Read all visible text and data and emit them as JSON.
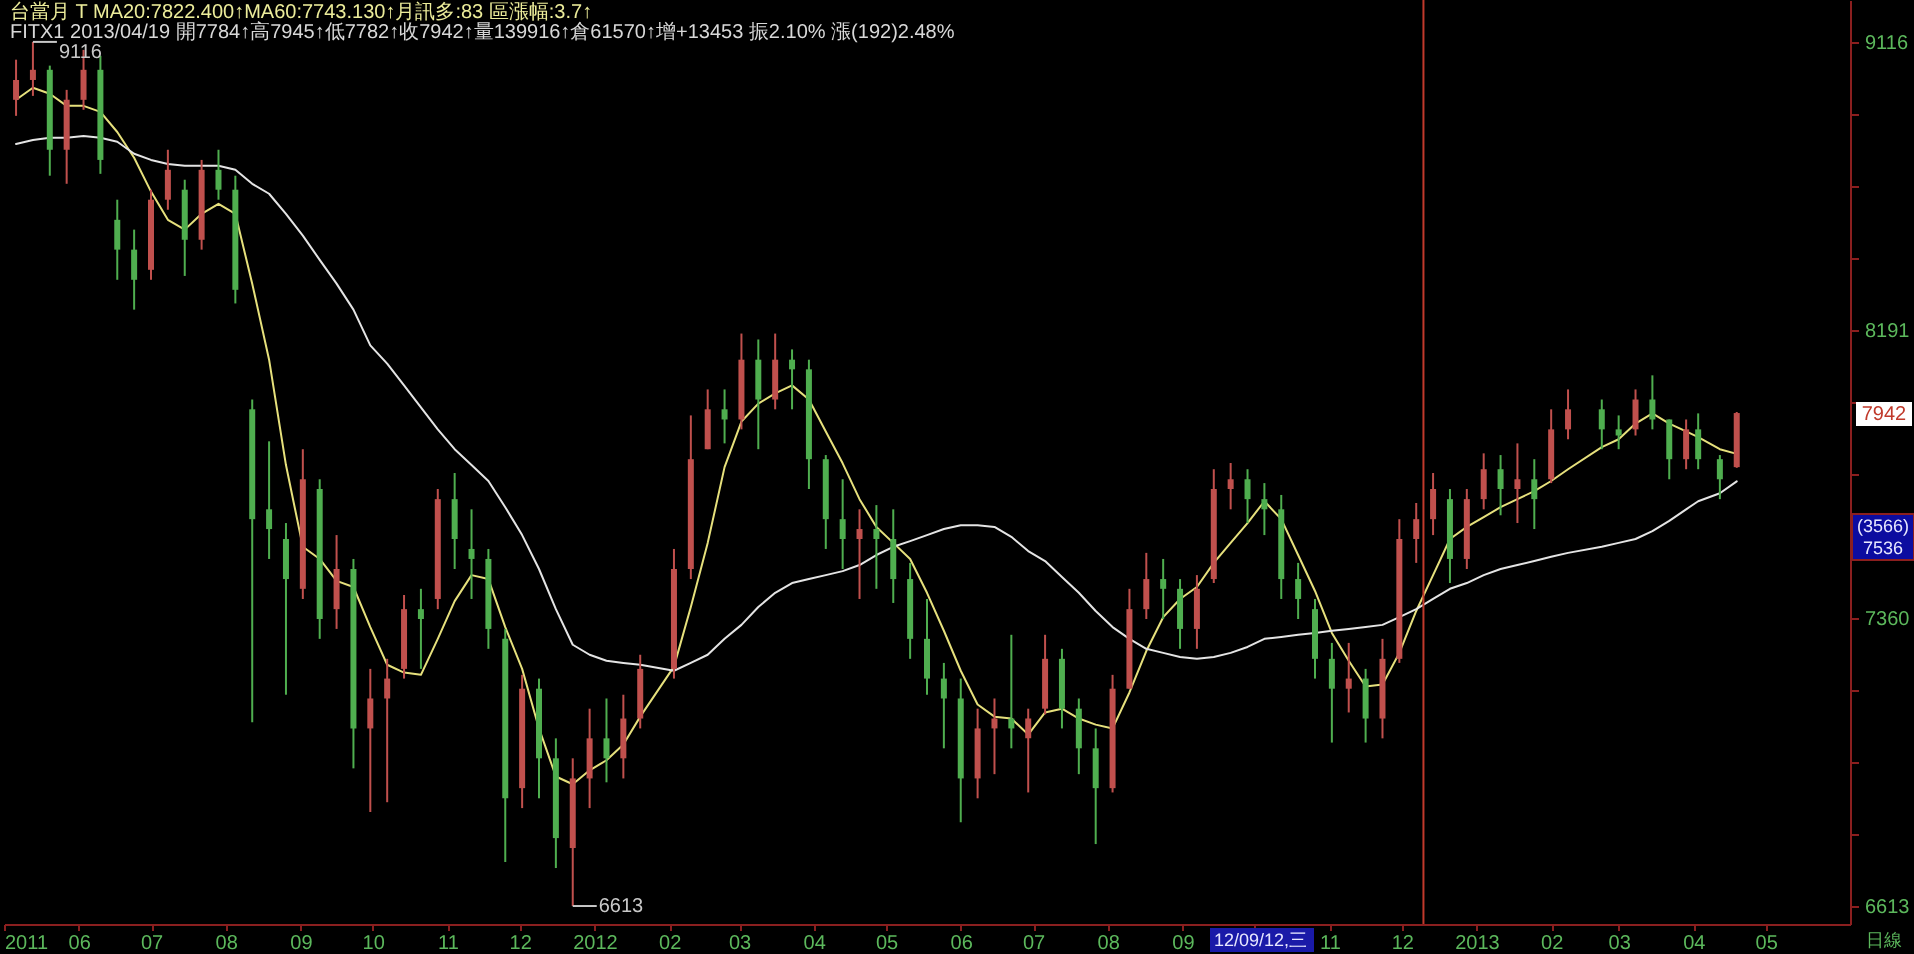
{
  "chart_data": {
    "type": "candlestick",
    "title": "台當月 T MA20:7822.400↑MA60:7743.130↑月訊多:83 區漲幅:3.7↑",
    "subtitle": "FITX1 2013/04/19 開7784↑高7945↑低7782↑收7942↑量139916↑倉61570↑增+13453 振2.10% 漲(192)2.48%",
    "x": [
      "2011-05-06",
      "2011-05-13",
      "2011-05-20",
      "2011-05-27",
      "2011-06-03",
      "2011-06-10",
      "2011-06-17",
      "2011-06-24",
      "2011-07-01",
      "2011-07-08",
      "2011-07-15",
      "2011-07-22",
      "2011-07-29",
      "2011-08-05",
      "2011-08-12",
      "2011-08-19",
      "2011-08-26",
      "2011-09-02",
      "2011-09-09",
      "2011-09-16",
      "2011-09-23",
      "2011-09-30",
      "2011-10-07",
      "2011-10-14",
      "2011-10-21",
      "2011-10-28",
      "2011-11-04",
      "2011-11-11",
      "2011-11-18",
      "2011-11-25",
      "2011-12-02",
      "2011-12-09",
      "2011-12-16",
      "2011-12-23",
      "2011-12-30",
      "2012-01-06",
      "2012-01-13",
      "2012-01-20",
      "2012-02-03",
      "2012-02-10",
      "2012-02-17",
      "2012-02-24",
      "2012-03-02",
      "2012-03-09",
      "2012-03-16",
      "2012-03-23",
      "2012-03-30",
      "2012-04-06",
      "2012-04-13",
      "2012-04-20",
      "2012-04-27",
      "2012-05-04",
      "2012-05-11",
      "2012-05-18",
      "2012-05-25",
      "2012-06-01",
      "2012-06-08",
      "2012-06-15",
      "2012-06-22",
      "2012-06-29",
      "2012-07-06",
      "2012-07-13",
      "2012-07-20",
      "2012-07-27",
      "2012-08-03",
      "2012-08-10",
      "2012-08-17",
      "2012-08-24",
      "2012-08-31",
      "2012-09-07",
      "2012-09-14",
      "2012-09-21",
      "2012-09-28",
      "2012-10-05",
      "2012-10-12",
      "2012-10-19",
      "2012-10-26",
      "2012-11-02",
      "2012-11-09",
      "2012-11-16",
      "2012-11-23",
      "2012-11-30",
      "2012-12-07",
      "2012-12-14",
      "2012-12-21",
      "2012-12-28",
      "2013-01-04",
      "2013-01-11",
      "2013-01-18",
      "2013-01-25",
      "2013-02-01",
      "2013-02-08",
      "2013-02-22",
      "2013-03-01",
      "2013-03-08",
      "2013-03-15",
      "2013-03-22",
      "2013-03-29",
      "2013-04-03",
      "2013-04-12",
      "2013-04-19"
    ],
    "ohlc": [
      [
        8922,
        9056,
        8869,
        8988
      ],
      [
        8988,
        9116,
        8935,
        9022
      ],
      [
        9022,
        9036,
        8674,
        8758
      ],
      [
        8758,
        8955,
        8648,
        8922
      ],
      [
        8922,
        9089,
        8889,
        9022
      ],
      [
        9022,
        9069,
        8680,
        8725
      ],
      [
        8533,
        8597,
        8345,
        8439
      ],
      [
        8439,
        8502,
        8253,
        8345
      ],
      [
        8376,
        8629,
        8345,
        8597
      ],
      [
        8597,
        8758,
        8565,
        8693
      ],
      [
        8629,
        8661,
        8357,
        8470
      ],
      [
        8470,
        8725,
        8439,
        8693
      ],
      [
        8693,
        8758,
        8597,
        8629
      ],
      [
        8629,
        8674,
        8272,
        8314
      ],
      [
        7953,
        7982,
        7080,
        7635
      ],
      [
        7663,
        7859,
        7523,
        7607
      ],
      [
        7579,
        7624,
        7153,
        7467
      ],
      [
        7440,
        7836,
        7412,
        7749
      ],
      [
        7721,
        7749,
        7303,
        7357
      ],
      [
        7384,
        7590,
        7330,
        7495
      ],
      [
        7495,
        7523,
        6960,
        7064
      ],
      [
        7064,
        7222,
        6848,
        7143
      ],
      [
        7143,
        7249,
        6873,
        7196
      ],
      [
        7222,
        7423,
        7196,
        7384
      ],
      [
        7384,
        7440,
        7222,
        7357
      ],
      [
        7412,
        7721,
        7384,
        7692
      ],
      [
        7692,
        7767,
        7495,
        7579
      ],
      [
        7551,
        7663,
        7412,
        7523
      ],
      [
        7523,
        7551,
        7276,
        7330
      ],
      [
        7303,
        7330,
        6722,
        6883
      ],
      [
        6909,
        7206,
        6858,
        7169
      ],
      [
        7169,
        7196,
        6883,
        6986
      ],
      [
        6986,
        7038,
        6707,
        6782
      ],
      [
        6757,
        6986,
        6613,
        6934
      ],
      [
        6934,
        7116,
        6858,
        7038
      ],
      [
        7038,
        7143,
        6924,
        6986
      ],
      [
        6986,
        7153,
        6934,
        7090
      ],
      [
        7090,
        7260,
        7064,
        7222
      ],
      [
        7222,
        7551,
        7196,
        7495
      ],
      [
        7495,
        7935,
        7467,
        7807
      ],
      [
        7836,
        8012,
        7836,
        7953
      ],
      [
        7953,
        8012,
        7853,
        7923
      ],
      [
        7923,
        8180,
        7894,
        8101
      ],
      [
        8101,
        8162,
        7836,
        7982
      ],
      [
        7982,
        8180,
        7953,
        8101
      ],
      [
        8101,
        8132,
        7953,
        8072
      ],
      [
        8072,
        8101,
        7721,
        7807
      ],
      [
        7807,
        7819,
        7551,
        7635
      ],
      [
        7635,
        7749,
        7495,
        7579
      ],
      [
        7579,
        7663,
        7412,
        7607
      ],
      [
        7607,
        7675,
        7440,
        7579
      ],
      [
        7579,
        7663,
        7401,
        7467
      ],
      [
        7467,
        7512,
        7249,
        7303
      ],
      [
        7303,
        7412,
        7153,
        7196
      ],
      [
        7196,
        7238,
        7012,
        7143
      ],
      [
        7143,
        7196,
        6822,
        6934
      ],
      [
        6934,
        7116,
        6883,
        7064
      ],
      [
        7064,
        7143,
        6945,
        7090
      ],
      [
        7090,
        7314,
        7012,
        7064
      ],
      [
        7038,
        7116,
        6898,
        7090
      ],
      [
        7116,
        7314,
        7101,
        7249
      ],
      [
        7249,
        7276,
        7064,
        7116
      ],
      [
        7116,
        7143,
        6945,
        7012
      ],
      [
        7012,
        7064,
        6767,
        6909
      ],
      [
        6909,
        7206,
        6898,
        7169
      ],
      [
        7169,
        7440,
        7169,
        7384
      ],
      [
        7384,
        7540,
        7357,
        7467
      ],
      [
        7467,
        7523,
        7357,
        7440
      ],
      [
        7440,
        7467,
        7276,
        7330
      ],
      [
        7330,
        7478,
        7276,
        7440
      ],
      [
        7467,
        7778,
        7456,
        7721
      ],
      [
        7721,
        7796,
        7663,
        7749
      ],
      [
        7749,
        7778,
        7624,
        7692
      ],
      [
        7692,
        7738,
        7590,
        7663
      ],
      [
        7663,
        7704,
        7412,
        7467
      ],
      [
        7467,
        7512,
        7357,
        7412
      ],
      [
        7384,
        7412,
        7196,
        7249
      ],
      [
        7249,
        7292,
        7027,
        7169
      ],
      [
        7169,
        7292,
        7106,
        7196
      ],
      [
        7196,
        7222,
        7027,
        7090
      ],
      [
        7090,
        7303,
        7038,
        7249
      ],
      [
        7249,
        7635,
        7238,
        7579
      ],
      [
        7579,
        7681,
        7512,
        7635
      ],
      [
        7635,
        7767,
        7590,
        7721
      ],
      [
        7692,
        7721,
        7456,
        7523
      ],
      [
        7523,
        7721,
        7495,
        7692
      ],
      [
        7692,
        7824,
        7663,
        7778
      ],
      [
        7778,
        7819,
        7646,
        7721
      ],
      [
        7721,
        7853,
        7624,
        7749
      ],
      [
        7749,
        7807,
        7607,
        7692
      ],
      [
        7749,
        7953,
        7738,
        7894
      ],
      [
        7894,
        8012,
        7865,
        7953
      ],
      [
        7953,
        7982,
        7836,
        7894
      ],
      [
        7894,
        7935,
        7836,
        7876
      ],
      [
        7894,
        8012,
        7876,
        7982
      ],
      [
        7982,
        8054,
        7894,
        7923
      ],
      [
        7923,
        7923,
        7749,
        7807
      ],
      [
        7807,
        7923,
        7778,
        7894
      ],
      [
        7894,
        7941,
        7778,
        7807
      ],
      [
        7807,
        7819,
        7692,
        7749
      ],
      [
        7784,
        7945,
        7782,
        7942
      ]
    ],
    "colors": [
      "#c0504d",
      "#c0504d",
      "#4fae4f",
      "#c0504d",
      "#c0504d",
      "#4fae4f",
      "#4fae4f",
      "#4fae4f",
      "#c0504d",
      "#c0504d",
      "#4fae4f",
      "#c0504d",
      "#4fae4f",
      "#4fae4f",
      "#4fae4f",
      "#4fae4f",
      "#4fae4f",
      "#c0504d",
      "#4fae4f",
      "#c0504d",
      "#4fae4f",
      "#c0504d",
      "#c0504d",
      "#c0504d",
      "#4fae4f",
      "#c0504d",
      "#4fae4f",
      "#4fae4f",
      "#4fae4f",
      "#4fae4f",
      "#c0504d",
      "#4fae4f",
      "#4fae4f",
      "#c0504d",
      "#c0504d",
      "#4fae4f",
      "#c0504d",
      "#c0504d",
      "#c0504d",
      "#c0504d",
      "#c0504d",
      "#4fae4f",
      "#c0504d",
      "#4fae4f",
      "#c0504d",
      "#4fae4f",
      "#4fae4f",
      "#4fae4f",
      "#4fae4f",
      "#c0504d",
      "#4fae4f",
      "#4fae4f",
      "#4fae4f",
      "#4fae4f",
      "#4fae4f",
      "#4fae4f",
      "#c0504d",
      "#c0504d",
      "#4fae4f",
      "#c0504d",
      "#c0504d",
      "#4fae4f",
      "#4fae4f",
      "#4fae4f",
      "#c0504d",
      "#c0504d",
      "#c0504d",
      "#4fae4f",
      "#4fae4f",
      "#c0504d",
      "#c0504d",
      "#c0504d",
      "#4fae4f",
      "#4fae4f",
      "#4fae4f",
      "#4fae4f",
      "#4fae4f",
      "#4fae4f",
      "#c0504d",
      "#4fae4f",
      "#c0504d",
      "#c0504d",
      "#c0504d",
      "#c0504d",
      "#4fae4f",
      "#c0504d",
      "#c0504d",
      "#4fae4f",
      "#c0504d",
      "#4fae4f",
      "#c0504d",
      "#c0504d",
      "#4fae4f",
      "#4fae4f",
      "#c0504d",
      "#4fae4f",
      "#4fae4f",
      "#c0504d",
      "#4fae4f",
      "#4fae4f",
      "#c0504d"
    ],
    "series": [
      {
        "type": "line",
        "color": "#e6e07c",
        "values": [
          8922,
          8962,
          8942,
          8902,
          8902,
          8882,
          8816,
          8732,
          8623,
          8533,
          8502,
          8552,
          8584,
          8552,
          8333,
          8101,
          7790,
          7557,
          7523,
          7462,
          7445,
          7335,
          7233,
          7212,
          7206,
          7303,
          7406,
          7478,
          7467,
          7335,
          7222,
          7064,
          6939,
          6919,
          6955,
          6981,
          7022,
          7095,
          7228,
          7390,
          7568,
          7784,
          7917,
          7970,
          8000,
          8024,
          7982,
          7888,
          7795,
          7692,
          7613,
          7568,
          7523,
          7429,
          7325,
          7217,
          7127,
          7095,
          7090,
          7048,
          7106,
          7116,
          7090,
          7074,
          7064,
          7159,
          7270,
          7362,
          7412,
          7445,
          7512,
          7568,
          7624,
          7686,
          7635,
          7534,
          7434,
          7319,
          7244,
          7175,
          7180,
          7265,
          7379,
          7478,
          7579,
          7613,
          7641,
          7669,
          7692,
          7715,
          7744,
          7778,
          7842,
          7865,
          7911,
          7941,
          7911,
          7888,
          7871,
          7836,
          7822.4
        ]
      },
      {
        "type": "line",
        "color": "#e4e4e4",
        "values": [
          8777,
          8790,
          8797,
          8797,
          8803,
          8797,
          8784,
          8745,
          8725,
          8712,
          8706,
          8706,
          8706,
          8693,
          8648,
          8616,
          8552,
          8483,
          8407,
          8333,
          8253,
          8144,
          8089,
          8024,
          7959,
          7894,
          7836,
          7790,
          7744,
          7669,
          7590,
          7495,
          7384,
          7287,
          7260,
          7244,
          7238,
          7233,
          7217,
          7238,
          7260,
          7303,
          7341,
          7390,
          7429,
          7456,
          7467,
          7478,
          7489,
          7506,
          7534,
          7557,
          7573,
          7590,
          7607,
          7618,
          7618,
          7613,
          7585,
          7545,
          7517,
          7473,
          7429,
          7379,
          7335,
          7303,
          7276,
          7265,
          7254,
          7249,
          7254,
          7265,
          7281,
          7303,
          7308,
          7314,
          7319,
          7325,
          7330,
          7335,
          7341,
          7362,
          7384,
          7412,
          7440,
          7456,
          7478,
          7495,
          7506,
          7517,
          7529,
          7540,
          7557,
          7568,
          7579,
          7601,
          7630,
          7663,
          7686,
          7709,
          7743.13
        ]
      }
    ],
    "xlim": [
      "2011-05-01",
      "2013-06-05"
    ],
    "xticks": [
      {
        "value": "2011-05-01",
        "label": "2011"
      },
      {
        "value": "2011-06-01",
        "label": "06"
      },
      {
        "value": "2011-07-01",
        "label": "07"
      },
      {
        "value": "2011-08-01",
        "label": "08"
      },
      {
        "value": "2011-09-01",
        "label": "09"
      },
      {
        "value": "2011-10-01",
        "label": "10"
      },
      {
        "value": "2011-11-01",
        "label": "11"
      },
      {
        "value": "2011-12-01",
        "label": "12"
      },
      {
        "value": "2012-01-01",
        "label": "2012"
      },
      {
        "value": "2012-02-01",
        "label": "02"
      },
      {
        "value": "2012-03-01",
        "label": "03"
      },
      {
        "value": "2012-04-01",
        "label": "04"
      },
      {
        "value": "2012-05-01",
        "label": "05"
      },
      {
        "value": "2012-06-01",
        "label": "06"
      },
      {
        "value": "2012-07-01",
        "label": "07"
      },
      {
        "value": "2012-08-01",
        "label": "08"
      },
      {
        "value": "2012-09-01",
        "label": "09"
      },
      {
        "value": "2012-10-01",
        "label": null
      },
      {
        "value": "2012-11-01",
        "label": "11"
      },
      {
        "value": "2012-12-01",
        "label": "12"
      },
      {
        "value": "2013-01-01",
        "label": "2013"
      },
      {
        "value": "2013-02-01",
        "label": "02"
      },
      {
        "value": "2013-03-01",
        "label": "03"
      },
      {
        "value": "2013-04-01",
        "label": "04"
      },
      {
        "value": "2013-05-01",
        "label": "05"
      }
    ],
    "ylim": [
      6569,
      9259
    ],
    "yticks": [
      9116,
      {
        "value": 8875,
        "label": null
      },
      {
        "value": 8641,
        "label": null
      },
      {
        "value": 8413,
        "label": null
      },
      8191,
      {
        "value": 7975,
        "label": null
      },
      {
        "value": 7764,
        "label": null
      },
      {
        "value": 7560,
        "label": null
      },
      7360,
      {
        "value": 7166,
        "label": null
      },
      {
        "value": 6977,
        "label": null
      },
      {
        "value": 6793,
        "label": null
      },
      6613
    ],
    "log": true,
    "grid": false,
    "ref_lines": [
      {
        "axis": "x",
        "value": "2012-12-10",
        "color": "#c0392b"
      }
    ],
    "annotations": [
      {
        "text": "9116",
        "x": "2011-05-13",
        "y": 9116
      },
      {
        "text": "6613",
        "x": "2011-12-23",
        "y": 6613
      },
      "7942",
      "(3566)",
      "7536",
      "12/09/12,三",
      "日線"
    ]
  }
}
